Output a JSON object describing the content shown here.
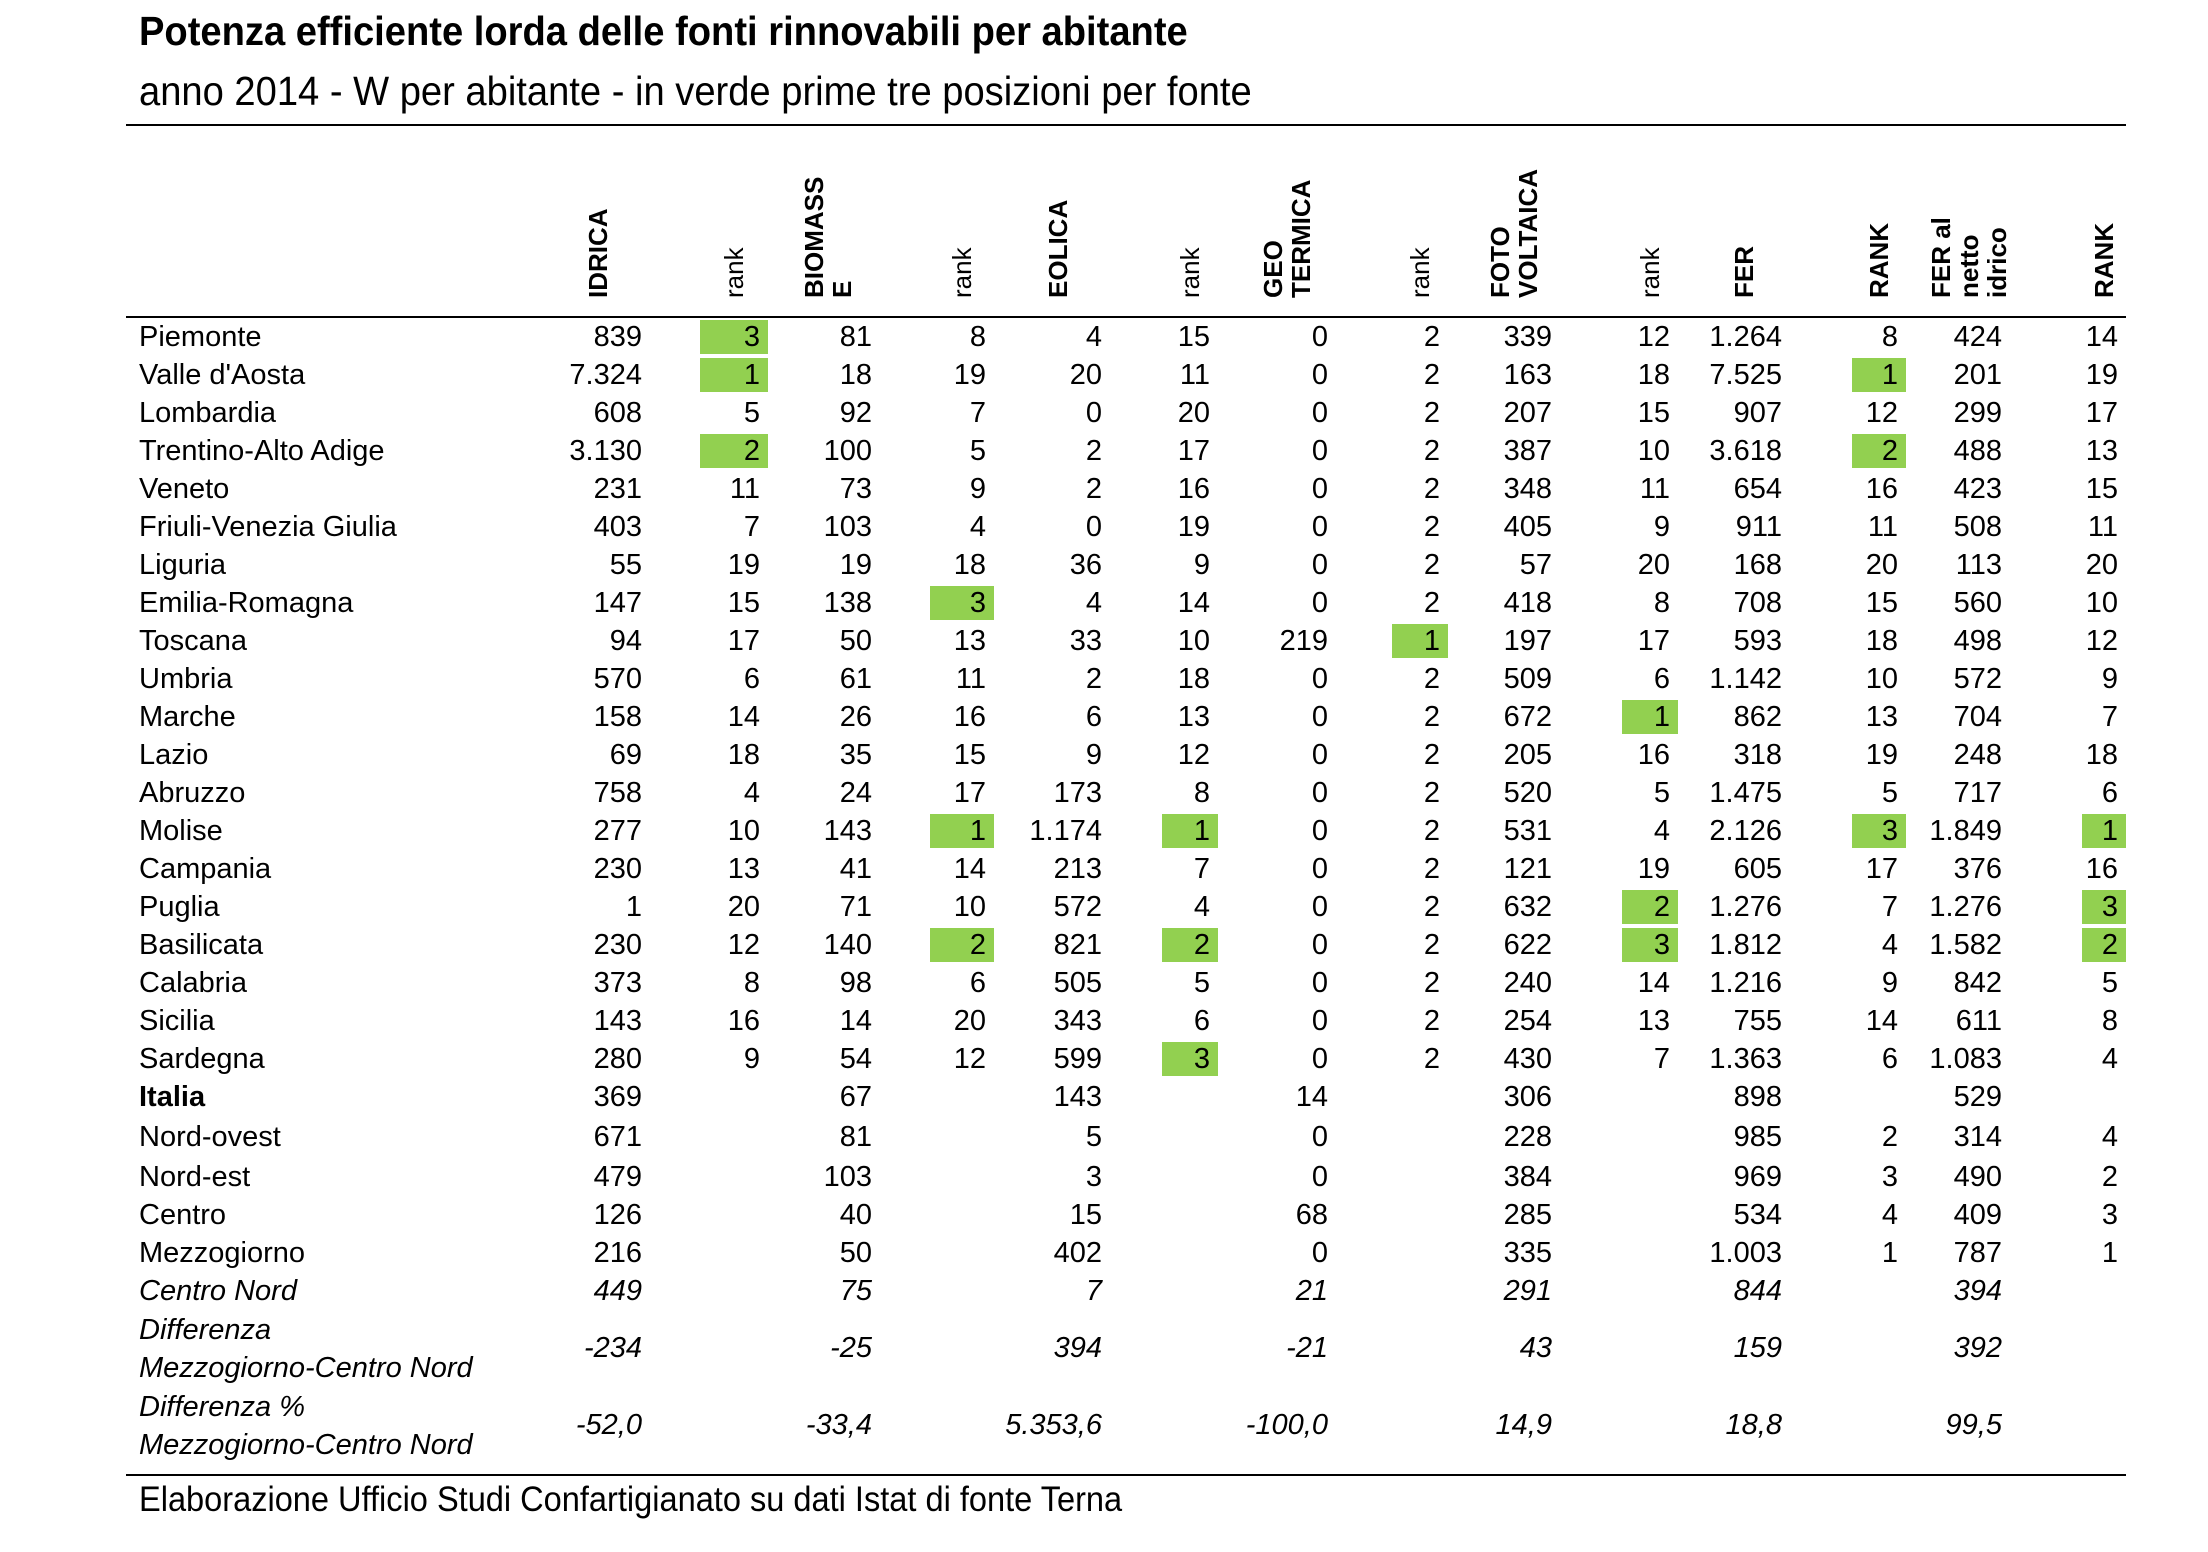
{
  "title": "Potenza efficiente lorda delle fonti rinnovabili per abitante",
  "subtitle": "anno 2014 - W per abitante - in verde prime tre posizioni per fonte",
  "headers": [
    {
      "lines": [
        "IDRICA"
      ],
      "bold": true
    },
    {
      "lines": [
        "rank"
      ],
      "bold": false
    },
    {
      "lines": [
        "BIOMASS",
        "E"
      ],
      "bold": true
    },
    {
      "lines": [
        "rank"
      ],
      "bold": false
    },
    {
      "lines": [
        "EOLICA"
      ],
      "bold": true
    },
    {
      "lines": [
        "rank"
      ],
      "bold": false
    },
    {
      "lines": [
        "GEO",
        "TERMICA"
      ],
      "bold": true
    },
    {
      "lines": [
        "rank"
      ],
      "bold": false
    },
    {
      "lines": [
        "FOTO",
        "VOLTAICA"
      ],
      "bold": true
    },
    {
      "lines": [
        "rank"
      ],
      "bold": false
    },
    {
      "lines": [
        "FER"
      ],
      "bold": true
    },
    {
      "lines": [
        "RANK"
      ],
      "bold": true
    },
    {
      "lines": [
        "FER al",
        "netto",
        "idrico"
      ],
      "bold": true
    },
    {
      "lines": [
        "RANK"
      ],
      "bold": true
    }
  ],
  "highlight_color": "#92d050",
  "rows": [
    {
      "name": "Piemonte",
      "values": [
        "839",
        "3",
        "81",
        "8",
        "4",
        "15",
        "0",
        "2",
        "339",
        "12",
        "1.264",
        "8",
        "424",
        "14"
      ],
      "green": [
        1
      ]
    },
    {
      "name": "Valle d'Aosta",
      "values": [
        "7.324",
        "1",
        "18",
        "19",
        "20",
        "11",
        "0",
        "2",
        "163",
        "18",
        "7.525",
        "1",
        "201",
        "19"
      ],
      "green": [
        1,
        11
      ]
    },
    {
      "name": "Lombardia",
      "values": [
        "608",
        "5",
        "92",
        "7",
        "0",
        "20",
        "0",
        "2",
        "207",
        "15",
        "907",
        "12",
        "299",
        "17"
      ],
      "green": []
    },
    {
      "name": "Trentino-Alto Adige",
      "values": [
        "3.130",
        "2",
        "100",
        "5",
        "2",
        "17",
        "0",
        "2",
        "387",
        "10",
        "3.618",
        "2",
        "488",
        "13"
      ],
      "green": [
        1,
        11
      ]
    },
    {
      "name": "Veneto",
      "values": [
        "231",
        "11",
        "73",
        "9",
        "2",
        "16",
        "0",
        "2",
        "348",
        "11",
        "654",
        "16",
        "423",
        "15"
      ],
      "green": []
    },
    {
      "name": "Friuli-Venezia Giulia",
      "values": [
        "403",
        "7",
        "103",
        "4",
        "0",
        "19",
        "0",
        "2",
        "405",
        "9",
        "911",
        "11",
        "508",
        "11"
      ],
      "green": []
    },
    {
      "name": "Liguria",
      "values": [
        "55",
        "19",
        "19",
        "18",
        "36",
        "9",
        "0",
        "2",
        "57",
        "20",
        "168",
        "20",
        "113",
        "20"
      ],
      "green": []
    },
    {
      "name": "Emilia-Romagna",
      "values": [
        "147",
        "15",
        "138",
        "3",
        "4",
        "14",
        "0",
        "2",
        "418",
        "8",
        "708",
        "15",
        "560",
        "10"
      ],
      "green": [
        3
      ]
    },
    {
      "name": "Toscana",
      "values": [
        "94",
        "17",
        "50",
        "13",
        "33",
        "10",
        "219",
        "1",
        "197",
        "17",
        "593",
        "18",
        "498",
        "12"
      ],
      "green": [
        7
      ]
    },
    {
      "name": "Umbria",
      "values": [
        "570",
        "6",
        "61",
        "11",
        "2",
        "18",
        "0",
        "2",
        "509",
        "6",
        "1.142",
        "10",
        "572",
        "9"
      ],
      "green": []
    },
    {
      "name": "Marche",
      "values": [
        "158",
        "14",
        "26",
        "16",
        "6",
        "13",
        "0",
        "2",
        "672",
        "1",
        "862",
        "13",
        "704",
        "7"
      ],
      "green": [
        9
      ]
    },
    {
      "name": "Lazio",
      "values": [
        "69",
        "18",
        "35",
        "15",
        "9",
        "12",
        "0",
        "2",
        "205",
        "16",
        "318",
        "19",
        "248",
        "18"
      ],
      "green": []
    },
    {
      "name": "Abruzzo",
      "values": [
        "758",
        "4",
        "24",
        "17",
        "173",
        "8",
        "0",
        "2",
        "520",
        "5",
        "1.475",
        "5",
        "717",
        "6"
      ],
      "green": []
    },
    {
      "name": "Molise",
      "values": [
        "277",
        "10",
        "143",
        "1",
        "1.174",
        "1",
        "0",
        "2",
        "531",
        "4",
        "2.126",
        "3",
        "1.849",
        "1"
      ],
      "green": [
        3,
        5,
        11,
        13
      ]
    },
    {
      "name": "Campania",
      "values": [
        "230",
        "13",
        "41",
        "14",
        "213",
        "7",
        "0",
        "2",
        "121",
        "19",
        "605",
        "17",
        "376",
        "16"
      ],
      "green": []
    },
    {
      "name": "Puglia",
      "values": [
        "1",
        "20",
        "71",
        "10",
        "572",
        "4",
        "0",
        "2",
        "632",
        "2",
        "1.276",
        "7",
        "1.276",
        "3"
      ],
      "green": [
        9,
        13
      ]
    },
    {
      "name": "Basilicata",
      "values": [
        "230",
        "12",
        "140",
        "2",
        "821",
        "2",
        "0",
        "2",
        "622",
        "3",
        "1.812",
        "4",
        "1.582",
        "2"
      ],
      "green": [
        3,
        5,
        9,
        13
      ]
    },
    {
      "name": "Calabria",
      "values": [
        "373",
        "8",
        "98",
        "6",
        "505",
        "5",
        "0",
        "2",
        "240",
        "14",
        "1.216",
        "9",
        "842",
        "5"
      ],
      "green": []
    },
    {
      "name": "Sicilia",
      "values": [
        "143",
        "16",
        "14",
        "20",
        "343",
        "6",
        "0",
        "2",
        "254",
        "13",
        "755",
        "14",
        "611",
        "8"
      ],
      "green": []
    },
    {
      "name": "Sardegna",
      "values": [
        "280",
        "9",
        "54",
        "12",
        "599",
        "3",
        "0",
        "2",
        "430",
        "7",
        "1.363",
        "6",
        "1.083",
        "4"
      ],
      "green": [
        5
      ]
    },
    {
      "name": "Italia",
      "values": [
        "369",
        "",
        "67",
        "",
        "143",
        "",
        "14",
        "",
        "306",
        "",
        "898",
        "",
        "529",
        ""
      ],
      "green": [],
      "style": "bold"
    },
    {
      "name": "Nord-ovest",
      "values": [
        "671",
        "",
        "81",
        "",
        "5",
        "",
        "0",
        "",
        "228",
        "",
        "985",
        "2",
        "314",
        "4"
      ],
      "green": []
    },
    {
      "name": "Nord-est",
      "values": [
        "479",
        "",
        "103",
        "",
        "3",
        "",
        "0",
        "",
        "384",
        "",
        "969",
        "3",
        "490",
        "2"
      ],
      "green": []
    },
    {
      "name": "Centro",
      "values": [
        "126",
        "",
        "40",
        "",
        "15",
        "",
        "68",
        "",
        "285",
        "",
        "534",
        "4",
        "409",
        "3"
      ],
      "green": []
    },
    {
      "name": "Mezzogiorno",
      "values": [
        "216",
        "",
        "50",
        "",
        "402",
        "",
        "0",
        "",
        "335",
        "",
        "1.003",
        "1",
        "787",
        "1"
      ],
      "green": []
    },
    {
      "name": "Centro Nord",
      "values": [
        "449",
        "",
        "75",
        "",
        "7",
        "",
        "21",
        "",
        "291",
        "",
        "844",
        "",
        "394",
        ""
      ],
      "green": [],
      "style": "italic"
    },
    {
      "name": "Differenza Mezzogiorno-Centro Nord",
      "name_lines": [
        "Differenza",
        "Mezzogiorno-Centro Nord"
      ],
      "values": [
        "-234",
        "",
        "-25",
        "",
        "394",
        "",
        "-21",
        "",
        "43",
        "",
        "159",
        "",
        "392",
        ""
      ],
      "green": [],
      "style": "italic"
    },
    {
      "name": "Differenza % Mezzogiorno-Centro Nord",
      "name_lines": [
        "Differenza %",
        "Mezzogiorno-Centro Nord"
      ],
      "values": [
        "-52,0",
        "",
        "-33,4",
        "",
        "5.353,6",
        "",
        "-100,0",
        "",
        "14,9",
        "",
        "18,8",
        "",
        "99,5",
        ""
      ],
      "green": [],
      "style": "italic"
    }
  ],
  "footer": "Elaborazione Ufficio Studi Confartigianato su dati Istat di fonte Terna"
}
